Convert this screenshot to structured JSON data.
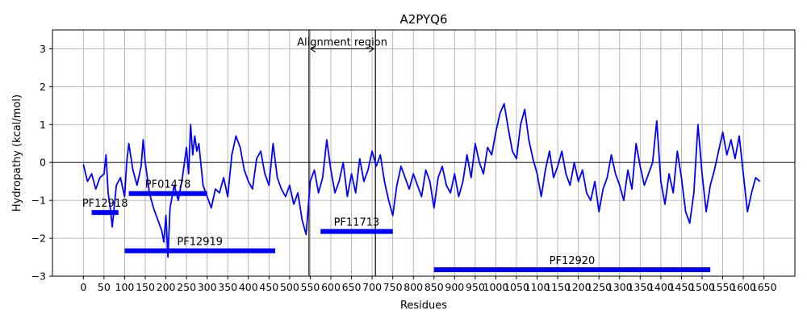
{
  "chart_data": {
    "type": "line",
    "title": "A2PYQ6",
    "xlabel": "Residues",
    "ylabel": "Hydropathy (kcal/mol)",
    "xlim": [
      -75,
      1725
    ],
    "ylim": [
      -3,
      3.5
    ],
    "x_ticks": [
      0,
      50,
      100,
      150,
      200,
      250,
      300,
      350,
      400,
      450,
      500,
      550,
      600,
      650,
      700,
      750,
      800,
      850,
      900,
      950,
      1000,
      1050,
      1100,
      1150,
      1200,
      1250,
      1300,
      1350,
      1400,
      1450,
      1500,
      1550,
      1600,
      1650
    ],
    "y_ticks": [
      -3,
      -2,
      -1,
      0,
      1,
      2,
      3
    ],
    "grid": true,
    "colors": {
      "line": "#0000ff",
      "domain_bar": "#0000ff",
      "zero_line": "#000000",
      "grid": "#b0b0b0"
    },
    "series": [
      {
        "values": [
          [
            0,
            -0.05
          ],
          [
            10,
            -0.5
          ],
          [
            20,
            -0.3
          ],
          [
            30,
            -0.7
          ],
          [
            40,
            -0.4
          ],
          [
            50,
            -0.3
          ],
          [
            55,
            0.2
          ],
          [
            60,
            -0.8
          ],
          [
            65,
            -1.2
          ],
          [
            70,
            -1.7
          ],
          [
            80,
            -0.6
          ],
          [
            90,
            -0.4
          ],
          [
            100,
            -0.9
          ],
          [
            105,
            0.0
          ],
          [
            110,
            0.5
          ],
          [
            120,
            -0.2
          ],
          [
            130,
            -0.6
          ],
          [
            140,
            -0.1
          ],
          [
            145,
            0.6
          ],
          [
            150,
            0.0
          ],
          [
            160,
            -0.8
          ],
          [
            170,
            -1.2
          ],
          [
            180,
            -1.5
          ],
          [
            190,
            -1.8
          ],
          [
            195,
            -2.1
          ],
          [
            200,
            -1.4
          ],
          [
            205,
            -2.5
          ],
          [
            210,
            -1.2
          ],
          [
            220,
            -0.6
          ],
          [
            230,
            -1.0
          ],
          [
            240,
            -0.4
          ],
          [
            250,
            0.4
          ],
          [
            255,
            -0.3
          ],
          [
            260,
            1.0
          ],
          [
            265,
            0.2
          ],
          [
            270,
            0.7
          ],
          [
            275,
            0.3
          ],
          [
            280,
            0.5
          ],
          [
            290,
            -0.6
          ],
          [
            300,
            -0.9
          ],
          [
            310,
            -1.2
          ],
          [
            320,
            -0.7
          ],
          [
            330,
            -0.8
          ],
          [
            340,
            -0.4
          ],
          [
            350,
            -0.9
          ],
          [
            360,
            0.2
          ],
          [
            370,
            0.7
          ],
          [
            380,
            0.4
          ],
          [
            390,
            -0.2
          ],
          [
            400,
            -0.5
          ],
          [
            410,
            -0.7
          ],
          [
            420,
            0.1
          ],
          [
            430,
            0.3
          ],
          [
            440,
            -0.3
          ],
          [
            450,
            -0.6
          ],
          [
            460,
            0.5
          ],
          [
            470,
            -0.4
          ],
          [
            480,
            -0.7
          ],
          [
            490,
            -0.9
          ],
          [
            500,
            -0.6
          ],
          [
            510,
            -1.1
          ],
          [
            520,
            -0.8
          ],
          [
            530,
            -1.5
          ],
          [
            540,
            -1.9
          ],
          [
            545,
            -1.2
          ],
          [
            550,
            -0.5
          ],
          [
            560,
            -0.2
          ],
          [
            570,
            -0.8
          ],
          [
            580,
            -0.4
          ],
          [
            590,
            0.6
          ],
          [
            600,
            -0.2
          ],
          [
            610,
            -0.8
          ],
          [
            620,
            -0.5
          ],
          [
            630,
            0.0
          ],
          [
            640,
            -0.9
          ],
          [
            650,
            -0.3
          ],
          [
            660,
            -0.8
          ],
          [
            670,
            0.1
          ],
          [
            680,
            -0.5
          ],
          [
            690,
            -0.2
          ],
          [
            700,
            0.3
          ],
          [
            710,
            -0.1
          ],
          [
            720,
            0.2
          ],
          [
            730,
            -0.5
          ],
          [
            740,
            -1.0
          ],
          [
            750,
            -1.4
          ],
          [
            760,
            -0.6
          ],
          [
            770,
            -0.1
          ],
          [
            780,
            -0.4
          ],
          [
            790,
            -0.7
          ],
          [
            800,
            -0.3
          ],
          [
            810,
            -0.6
          ],
          [
            820,
            -0.9
          ],
          [
            830,
            -0.2
          ],
          [
            840,
            -0.5
          ],
          [
            850,
            -1.2
          ],
          [
            860,
            -0.4
          ],
          [
            870,
            -0.1
          ],
          [
            880,
            -0.6
          ],
          [
            890,
            -0.8
          ],
          [
            900,
            -0.3
          ],
          [
            910,
            -0.9
          ],
          [
            920,
            -0.5
          ],
          [
            930,
            0.2
          ],
          [
            940,
            -0.4
          ],
          [
            950,
            0.5
          ],
          [
            960,
            0.0
          ],
          [
            970,
            -0.3
          ],
          [
            980,
            0.4
          ],
          [
            990,
            0.2
          ],
          [
            1000,
            0.8
          ],
          [
            1010,
            1.3
          ],
          [
            1020,
            1.55
          ],
          [
            1030,
            0.9
          ],
          [
            1040,
            0.3
          ],
          [
            1050,
            0.1
          ],
          [
            1060,
            1.0
          ],
          [
            1070,
            1.4
          ],
          [
            1080,
            0.6
          ],
          [
            1090,
            0.1
          ],
          [
            1100,
            -0.3
          ],
          [
            1110,
            -0.9
          ],
          [
            1120,
            -0.2
          ],
          [
            1130,
            0.3
          ],
          [
            1140,
            -0.4
          ],
          [
            1150,
            -0.1
          ],
          [
            1160,
            0.3
          ],
          [
            1170,
            -0.3
          ],
          [
            1180,
            -0.6
          ],
          [
            1190,
            0.0
          ],
          [
            1200,
            -0.5
          ],
          [
            1210,
            -0.2
          ],
          [
            1220,
            -0.8
          ],
          [
            1230,
            -1.0
          ],
          [
            1240,
            -0.5
          ],
          [
            1250,
            -1.3
          ],
          [
            1260,
            -0.7
          ],
          [
            1270,
            -0.4
          ],
          [
            1280,
            0.2
          ],
          [
            1290,
            -0.3
          ],
          [
            1300,
            -0.6
          ],
          [
            1310,
            -1.0
          ],
          [
            1320,
            -0.2
          ],
          [
            1330,
            -0.7
          ],
          [
            1340,
            0.5
          ],
          [
            1350,
            -0.1
          ],
          [
            1360,
            -0.6
          ],
          [
            1370,
            -0.3
          ],
          [
            1380,
            0.0
          ],
          [
            1390,
            1.1
          ],
          [
            1400,
            -0.5
          ],
          [
            1410,
            -1.1
          ],
          [
            1420,
            -0.3
          ],
          [
            1430,
            -0.8
          ],
          [
            1440,
            0.3
          ],
          [
            1450,
            -0.4
          ],
          [
            1460,
            -1.3
          ],
          [
            1470,
            -1.6
          ],
          [
            1480,
            -0.8
          ],
          [
            1490,
            1.0
          ],
          [
            1500,
            -0.3
          ],
          [
            1510,
            -1.3
          ],
          [
            1520,
            -0.6
          ],
          [
            1530,
            -0.2
          ],
          [
            1540,
            0.3
          ],
          [
            1550,
            0.8
          ],
          [
            1560,
            0.2
          ],
          [
            1570,
            0.6
          ],
          [
            1580,
            0.1
          ],
          [
            1590,
            0.7
          ],
          [
            1600,
            -0.3
          ],
          [
            1610,
            -1.3
          ],
          [
            1620,
            -0.8
          ],
          [
            1630,
            -0.4
          ],
          [
            1640,
            -0.5
          ]
        ]
      }
    ],
    "domains": [
      {
        "name": "PF12918",
        "start": 20,
        "end": 85,
        "y": -1.32
      },
      {
        "name": "PF01478",
        "start": 110,
        "end": 300,
        "y": -0.82
      },
      {
        "name": "PF12919",
        "start": 100,
        "end": 465,
        "y": -2.33
      },
      {
        "name": "PF11713",
        "start": 575,
        "end": 750,
        "y": -1.82
      },
      {
        "name": "PF12920",
        "start": 850,
        "end": 1520,
        "y": -2.83
      }
    ],
    "alignment_region": {
      "label": "Alignment region",
      "start": 547,
      "end": 708,
      "arrow_y": 3.0
    }
  }
}
